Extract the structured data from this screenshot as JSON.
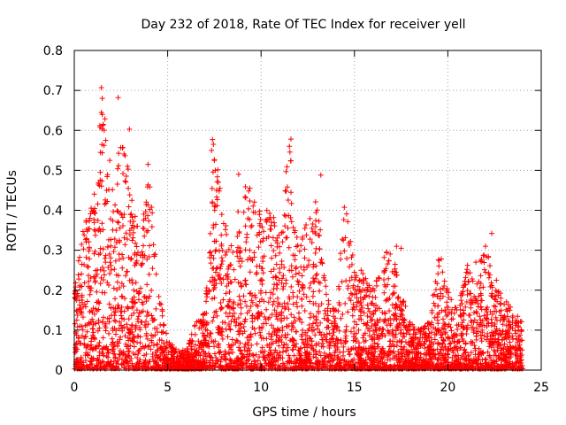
{
  "chart_data": {
    "type": "scatter",
    "title": "Day 232 of 2018, Rate Of TEC Index for receiver yell",
    "xlabel": "GPS time / hours",
    "ylabel": "ROTI / TECUs",
    "xlim": [
      0,
      25
    ],
    "ylim": [
      0,
      0.8
    ],
    "xticks": [
      0,
      5,
      10,
      15,
      20,
      25
    ],
    "yticks": [
      0,
      0.1,
      0.2,
      0.3,
      0.4,
      0.5,
      0.6,
      0.7,
      0.8
    ],
    "xtick_labels": [
      "0",
      "5",
      "10",
      "15",
      "20",
      "25"
    ],
    "ytick_labels": [
      "0",
      "0.1",
      "0.2",
      "0.3",
      "0.4",
      "0.5",
      "0.6",
      "0.7",
      "0.8"
    ],
    "grid": true,
    "marker": "+",
    "color": "#ff0000",
    "x_range_data": [
      0,
      24
    ],
    "envelope_hours": [
      0,
      0.5,
      1,
      1.5,
      2,
      2.5,
      3,
      3.5,
      4,
      4.5,
      5,
      5.5,
      6,
      6.5,
      7,
      7.5,
      8,
      8.5,
      9,
      9.5,
      10,
      10.5,
      11,
      11.5,
      12,
      12.5,
      13,
      13.5,
      14,
      14.5,
      15,
      15.5,
      16,
      16.5,
      17,
      17.5,
      18,
      18.5,
      19,
      19.5,
      20,
      20.5,
      21,
      21.5,
      22,
      22.5,
      23,
      23.5,
      24
    ],
    "envelope_roti": [
      0.2,
      0.38,
      0.42,
      0.7,
      0.45,
      0.6,
      0.5,
      0.32,
      0.5,
      0.2,
      0.08,
      0.05,
      0.05,
      0.12,
      0.15,
      0.57,
      0.4,
      0.3,
      0.48,
      0.45,
      0.4,
      0.4,
      0.35,
      0.58,
      0.3,
      0.38,
      0.45,
      0.2,
      0.15,
      0.46,
      0.25,
      0.25,
      0.22,
      0.3,
      0.3,
      0.2,
      0.12,
      0.1,
      0.12,
      0.28,
      0.2,
      0.15,
      0.27,
      0.2,
      0.35,
      0.22,
      0.18,
      0.15,
      0.12
    ],
    "notable_points": [
      {
        "x": 1.45,
        "y": 0.707
      },
      {
        "x": 1.5,
        "y": 0.68
      },
      {
        "x": 2.35,
        "y": 0.682
      },
      {
        "x": 1.45,
        "y": 0.645
      },
      {
        "x": 1.5,
        "y": 0.64
      },
      {
        "x": 1.55,
        "y": 0.615
      },
      {
        "x": 2.95,
        "y": 0.603
      },
      {
        "x": 11.6,
        "y": 0.578
      },
      {
        "x": 7.4,
        "y": 0.577
      },
      {
        "x": 7.45,
        "y": 0.565
      },
      {
        "x": 2.6,
        "y": 0.557
      },
      {
        "x": 1.4,
        "y": 0.545
      },
      {
        "x": 7.35,
        "y": 0.55
      },
      {
        "x": 1.9,
        "y": 0.525
      },
      {
        "x": 7.5,
        "y": 0.525
      },
      {
        "x": 3.95,
        "y": 0.515
      },
      {
        "x": 2.85,
        "y": 0.51
      },
      {
        "x": 7.55,
        "y": 0.5
      },
      {
        "x": 13.2,
        "y": 0.488
      },
      {
        "x": 8.8,
        "y": 0.49
      },
      {
        "x": 7.8,
        "y": 0.455
      },
      {
        "x": 9.4,
        "y": 0.455
      },
      {
        "x": 11.6,
        "y": 0.445
      },
      {
        "x": 17.25,
        "y": 0.31
      },
      {
        "x": 17.5,
        "y": 0.305
      },
      {
        "x": 19.65,
        "y": 0.278
      },
      {
        "x": 21.5,
        "y": 0.27
      },
      {
        "x": 22.35,
        "y": 0.342
      },
      {
        "x": 22.6,
        "y": 0.225
      }
    ]
  }
}
